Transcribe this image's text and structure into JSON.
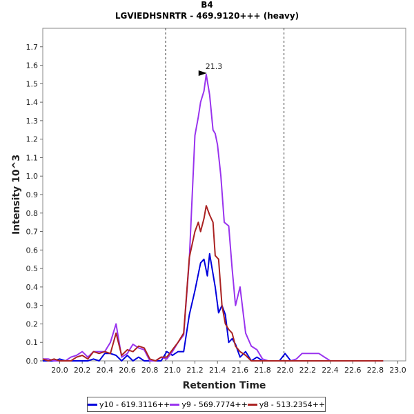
{
  "chart_data": {
    "type": "line",
    "title": "B4",
    "subtitle": "LGVIEDHSNRTR - 469.9120+++ (heavy)",
    "xlabel": "Retention Time",
    "ylabel": "Intensity 10^3",
    "xlim": [
      19.85,
      23.07
    ],
    "ylim": [
      0,
      1.8
    ],
    "xticks": [
      "20.0",
      "20.2",
      "20.4",
      "20.6",
      "20.8",
      "21.0",
      "21.2",
      "21.4",
      "21.6",
      "21.8",
      "22.0",
      "22.2",
      "22.4",
      "22.6",
      "22.8",
      "23.0"
    ],
    "yticks": [
      "0.0",
      "0.1",
      "0.2",
      "0.3",
      "0.4",
      "0.5",
      "0.6",
      "0.7",
      "0.8",
      "0.9",
      "1.0",
      "1.1",
      "1.2",
      "1.3",
      "1.4",
      "1.5",
      "1.6",
      "1.7"
    ],
    "vlines": [
      20.94,
      21.99
    ],
    "annotation": {
      "text": "21.3",
      "x": 21.33,
      "y": 1.55,
      "color": "#9933cc"
    },
    "legend_position": "bottom",
    "series": [
      {
        "name": "y10 - 619.3116++",
        "color": "#0000dd",
        "x": [
          19.85,
          19.9,
          19.95,
          20.0,
          20.05,
          20.1,
          20.15,
          20.2,
          20.25,
          20.3,
          20.35,
          20.4,
          20.45,
          20.5,
          20.55,
          20.6,
          20.65,
          20.7,
          20.75,
          20.8,
          20.85,
          20.9,
          20.95,
          21.0,
          21.05,
          21.1,
          21.15,
          21.2,
          21.25,
          21.28,
          21.31,
          21.33,
          21.36,
          21.38,
          21.41,
          21.44,
          21.47,
          21.5,
          21.53,
          21.56,
          21.6,
          21.65,
          21.7,
          21.75,
          21.8,
          21.85,
          21.9,
          21.95,
          22.0,
          22.05,
          22.1,
          22.15,
          22.2,
          22.3,
          22.4,
          22.5,
          22.6,
          22.7,
          22.8,
          22.87
        ],
        "y": [
          0,
          0,
          0,
          0.01,
          0,
          0,
          0,
          0,
          0,
          0.01,
          0,
          0.04,
          0.04,
          0.03,
          0,
          0.03,
          0,
          0.02,
          0,
          0,
          0,
          0,
          0.05,
          0.03,
          0.05,
          0.05,
          0.25,
          0.38,
          0.53,
          0.55,
          0.46,
          0.58,
          0.47,
          0.4,
          0.26,
          0.3,
          0.25,
          0.1,
          0.12,
          0.09,
          0.02,
          0.05,
          0,
          0.02,
          0,
          0,
          0,
          0,
          0.04,
          0,
          0,
          0,
          0,
          0,
          0,
          0,
          0,
          0,
          0,
          0
        ]
      },
      {
        "name": "y9 - 569.7774++",
        "color": "#9933ee",
        "x": [
          19.85,
          19.9,
          19.95,
          20.0,
          20.05,
          20.1,
          20.15,
          20.2,
          20.25,
          20.3,
          20.35,
          20.4,
          20.45,
          20.5,
          20.55,
          20.6,
          20.65,
          20.7,
          20.75,
          20.8,
          20.85,
          20.9,
          20.95,
          21.0,
          21.05,
          21.1,
          21.15,
          21.2,
          21.23,
          21.25,
          21.28,
          21.3,
          21.33,
          21.36,
          21.38,
          21.4,
          21.43,
          21.46,
          21.5,
          21.53,
          21.56,
          21.6,
          21.65,
          21.7,
          21.75,
          21.8,
          21.85,
          21.9,
          21.95,
          22.0,
          22.05,
          22.1,
          22.15,
          22.2,
          22.3,
          22.4,
          22.5,
          22.6,
          22.7,
          22.8,
          22.87
        ],
        "y": [
          0.01,
          0.01,
          0,
          0,
          0,
          0.02,
          0.03,
          0.05,
          0.02,
          0.05,
          0.05,
          0.05,
          0.1,
          0.2,
          0.02,
          0.04,
          0.09,
          0.07,
          0.06,
          0,
          0,
          0.02,
          0.01,
          0.05,
          0.1,
          0.14,
          0.55,
          1.22,
          1.32,
          1.4,
          1.46,
          1.55,
          1.44,
          1.25,
          1.23,
          1.17,
          1.0,
          0.75,
          0.73,
          0.5,
          0.3,
          0.4,
          0.15,
          0.08,
          0.06,
          0.01,
          0,
          0,
          0,
          0,
          0,
          0.01,
          0.04,
          0.04,
          0.04,
          0,
          0,
          0,
          0,
          0,
          0
        ]
      },
      {
        "name": "y8 - 513.2354++",
        "color": "#aa2222",
        "x": [
          19.85,
          19.9,
          19.95,
          20.0,
          20.05,
          20.1,
          20.15,
          20.2,
          20.25,
          20.3,
          20.35,
          20.4,
          20.45,
          20.5,
          20.55,
          20.6,
          20.65,
          20.7,
          20.75,
          20.8,
          20.85,
          20.9,
          20.95,
          21.0,
          21.05,
          21.1,
          21.15,
          21.2,
          21.23,
          21.25,
          21.28,
          21.3,
          21.33,
          21.36,
          21.38,
          21.41,
          21.44,
          21.47,
          21.5,
          21.53,
          21.56,
          21.6,
          21.65,
          21.7,
          21.75,
          21.8,
          21.85,
          21.9,
          21.95,
          22.0,
          22.05,
          22.1,
          22.15,
          22.2,
          22.3,
          22.4,
          22.5,
          22.6,
          22.7,
          22.8,
          22.87
        ],
        "y": [
          0.01,
          0,
          0.01,
          0,
          0,
          0,
          0.02,
          0.03,
          0.01,
          0.05,
          0.04,
          0.05,
          0.04,
          0.15,
          0.03,
          0.06,
          0.05,
          0.08,
          0.07,
          0.01,
          0,
          0.02,
          0.02,
          0.06,
          0.1,
          0.15,
          0.56,
          0.7,
          0.75,
          0.7,
          0.77,
          0.84,
          0.79,
          0.75,
          0.57,
          0.55,
          0.3,
          0.2,
          0.17,
          0.15,
          0.08,
          0.05,
          0.03,
          0,
          0,
          0,
          0,
          0,
          0,
          0,
          0,
          0,
          0,
          0,
          0,
          0,
          0,
          0,
          0,
          0,
          0
        ]
      }
    ]
  }
}
